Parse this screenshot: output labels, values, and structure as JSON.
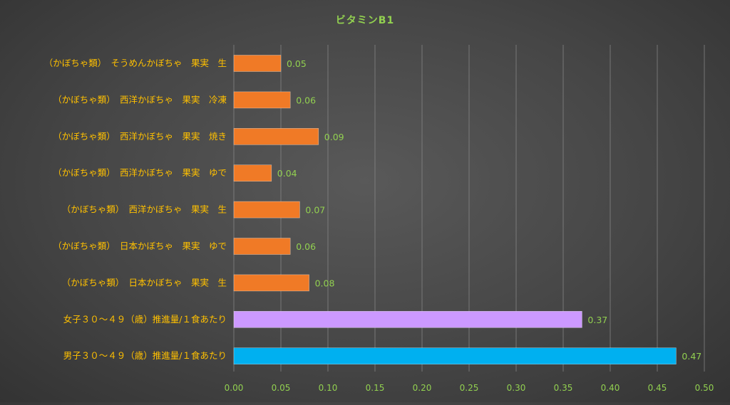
{
  "chart_data": {
    "type": "bar",
    "orientation": "horizontal",
    "title": "ビタミンB1",
    "xlabel": "",
    "ylabel": "",
    "xlim": [
      0,
      0.5
    ],
    "xticks": [
      "0.00",
      "0.05",
      "0.10",
      "0.15",
      "0.20",
      "0.25",
      "0.30",
      "0.35",
      "0.40",
      "0.45",
      "0.50"
    ],
    "grid": "vertical",
    "legend": "none",
    "categories": [
      "（かぼちゃ類）　そうめんかぼちゃ　果実　生",
      "（かぼちゃ類）　西洋かぼちゃ　果実　冷凍",
      "（かぼちゃ類）　西洋かぼちゃ　果実　焼き",
      "（かぼちゃ類）　西洋かぼちゃ　果実　ゆで",
      "（かぼちゃ類）　西洋かぼちゃ　果実　生",
      "（かぼちゃ類）　日本かぼちゃ　果実　ゆで",
      "（かぼちゃ類）　日本かぼちゃ　果実　生",
      "女子３０～４９（歳）推進量/１食あたり",
      "男子３０～４９（歳）推進量/１食あたり"
    ],
    "values": [
      0.05,
      0.06,
      0.09,
      0.04,
      0.07,
      0.06,
      0.08,
      0.37,
      0.47
    ],
    "value_labels": [
      "0.05",
      "0.06",
      "0.09",
      "0.04",
      "0.07",
      "0.06",
      "0.08",
      "0.37",
      "0.47"
    ],
    "bar_colors": [
      "#F07A26",
      "#F07A26",
      "#F07A26",
      "#F07A26",
      "#F07A26",
      "#F07A26",
      "#F07A26",
      "#CC99FF",
      "#00B0F0"
    ],
    "colors": {
      "title": "#92D050",
      "category_label": "#FFC000",
      "tick_label": "#92D050",
      "value_label": "#92D050",
      "gridline": "#8C8C8C"
    }
  }
}
